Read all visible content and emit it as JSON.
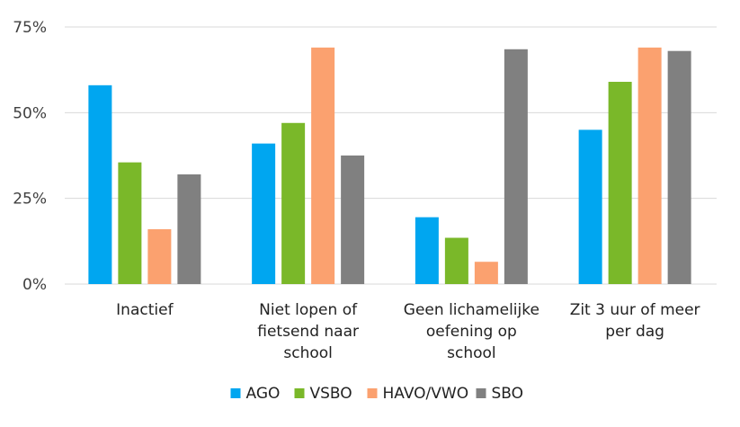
{
  "chart_data": {
    "type": "bar",
    "categories": [
      [
        "Inactief"
      ],
      [
        "Niet lopen of",
        "fietsend naar",
        "school"
      ],
      [
        "Geen lichamelijke",
        "oefening op",
        "school"
      ],
      [
        "Zit 3 uur of meer",
        "per dag"
      ]
    ],
    "series": [
      {
        "name": "AGO",
        "color": "#00a6f0",
        "values": [
          58,
          41,
          19.5,
          45
        ]
      },
      {
        "name": "VSBO",
        "color": "#7ab829",
        "values": [
          35.5,
          47,
          13.5,
          59
        ]
      },
      {
        "name": "HAVO/VWO",
        "color": "#fba16f",
        "values": [
          16,
          69,
          6.5,
          69
        ]
      },
      {
        "name": "SBO",
        "color": "#808080",
        "values": [
          32,
          37.5,
          68.5,
          68
        ]
      }
    ],
    "ylim": [
      0,
      75
    ],
    "yticks": [
      0,
      25,
      50,
      75
    ],
    "ytick_labels": [
      "0%",
      "25%",
      "50%",
      "75%"
    ],
    "grid": true,
    "legend_position": "bottom",
    "title": "",
    "xlabel": "",
    "ylabel": ""
  }
}
